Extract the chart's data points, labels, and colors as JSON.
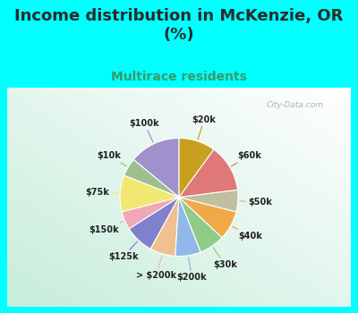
{
  "title": "Income distribution in McKenzie, OR\n(%)",
  "subtitle": "Multirace residents",
  "title_color": "#2a2a2a",
  "subtitle_color": "#3a9a6a",
  "bg_cyan": "#00ffff",
  "bg_chart_colors": [
    "#ffffff",
    "#c8e8d8"
  ],
  "watermark": "City-Data.com",
  "labels": [
    "$100k",
    "$10k",
    "$75k",
    "$150k",
    "$125k",
    "> $200k",
    "$200k",
    "$30k",
    "$40k",
    "$50k",
    "$60k",
    "$20k"
  ],
  "values": [
    14,
    5,
    10,
    5,
    8,
    7,
    7,
    7,
    8,
    6,
    13,
    10
  ],
  "colors": [
    "#a090cc",
    "#9dbf90",
    "#f0e870",
    "#f0a8b8",
    "#8080cc",
    "#f0c090",
    "#90b8e8",
    "#90cc88",
    "#f0a848",
    "#c0c0a0",
    "#e07878",
    "#c8a020"
  ],
  "label_fontsize": 7.0,
  "title_fontsize": 13,
  "subtitle_fontsize": 10,
  "startangle": 90
}
